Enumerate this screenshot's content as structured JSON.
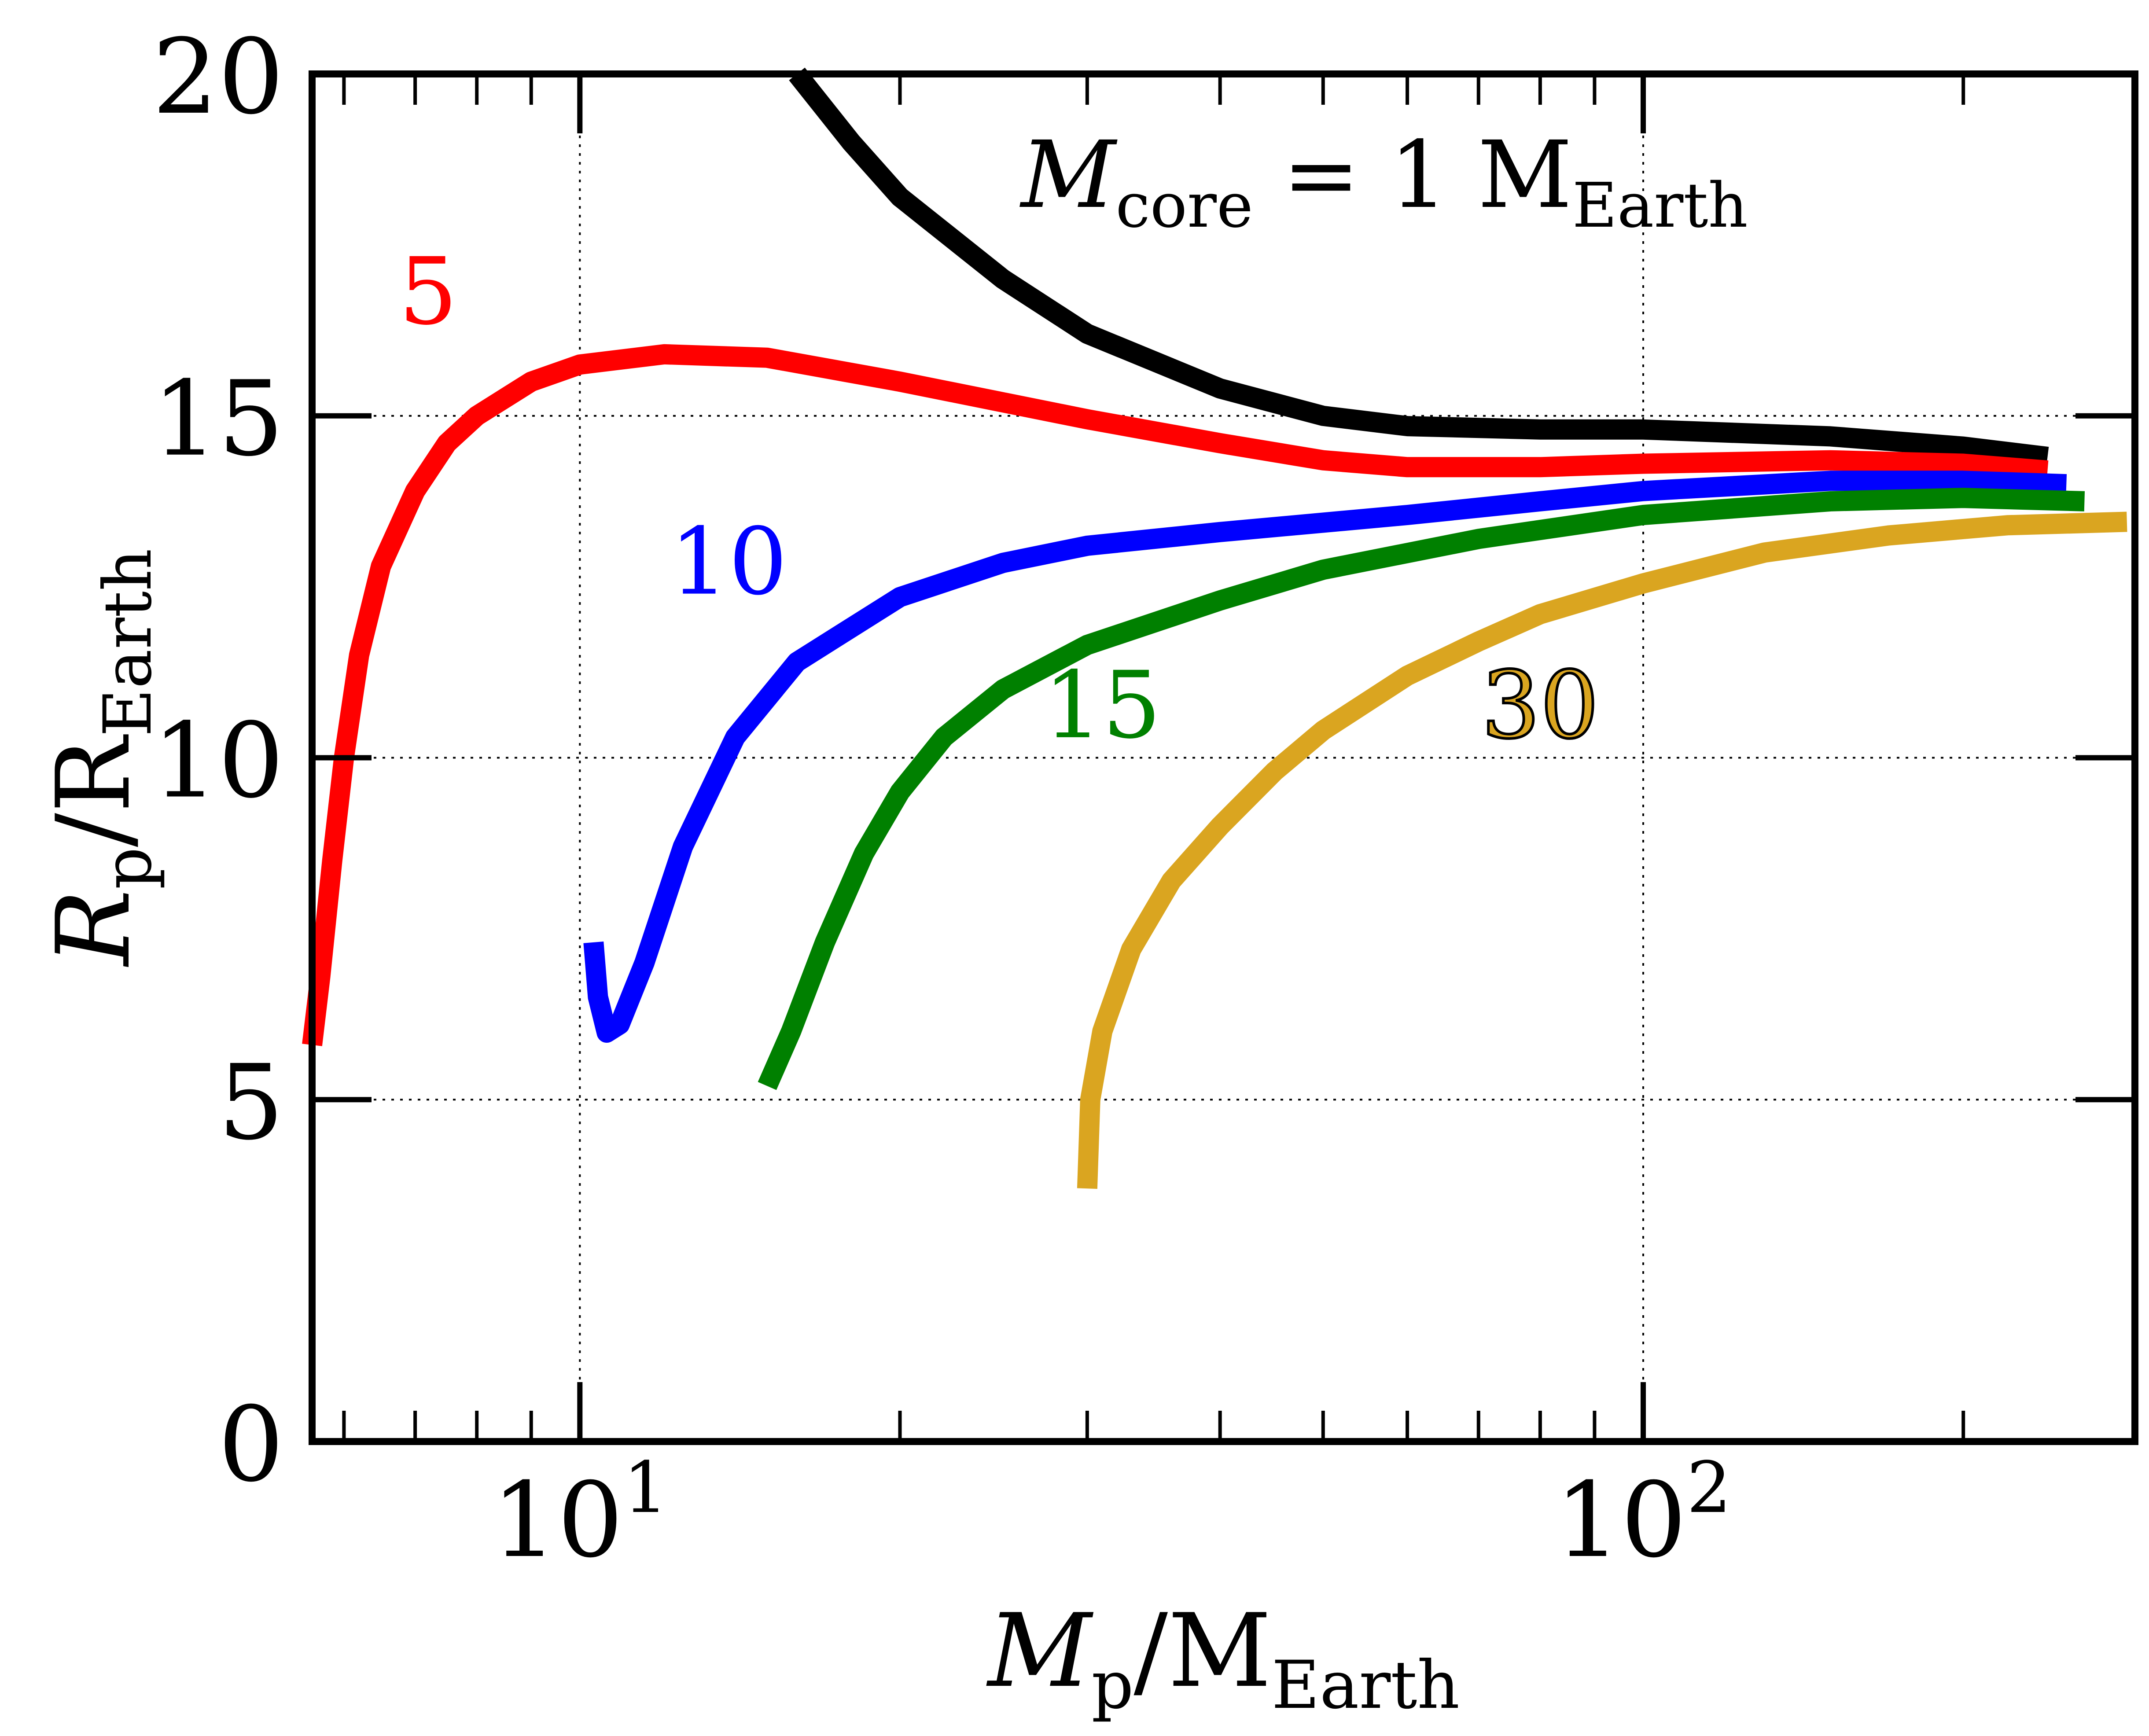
{
  "chart_data": {
    "type": "line",
    "xscale": "log",
    "xlim": [
      5.6,
      290
    ],
    "ylim": [
      0,
      20
    ],
    "grid": true,
    "xlabel": {
      "main": "M",
      "sub": "p",
      "sep": "/M",
      "unit_sub": "Earth"
    },
    "ylabel": {
      "main": "R",
      "sub": "p",
      "sep": "/R",
      "unit_sub": "Earth"
    },
    "annotation": {
      "prefix": "M",
      "sub": "core",
      "middle": " = 1 M",
      "unit_sub": "Earth"
    },
    "x_ticks": [
      {
        "value": 10,
        "base": "10",
        "exp": "1"
      },
      {
        "value": 100,
        "base": "10",
        "exp": "2"
      }
    ],
    "y_ticks": [
      {
        "value": 0,
        "label": "0"
      },
      {
        "value": 5,
        "label": "5"
      },
      {
        "value": 10,
        "label": "10"
      },
      {
        "value": 15,
        "label": "15"
      },
      {
        "value": 20,
        "label": "20"
      }
    ],
    "series": [
      {
        "label": "",
        "color": "#000000",
        "points": [
          [
            16.0,
            20.0
          ],
          [
            18.0,
            19.0
          ],
          [
            20.0,
            18.2
          ],
          [
            25.0,
            17.0
          ],
          [
            30.0,
            16.2
          ],
          [
            40.0,
            15.4
          ],
          [
            50.0,
            15.0
          ],
          [
            60.0,
            14.85
          ],
          [
            80.0,
            14.8
          ],
          [
            100.0,
            14.8
          ],
          [
            150.0,
            14.7
          ],
          [
            200.0,
            14.55
          ],
          [
            240.0,
            14.4
          ]
        ],
        "label_at": null
      },
      {
        "label": "5",
        "color": "#ff0000",
        "points": [
          [
            5.6,
            5.8
          ],
          [
            5.7,
            6.8
          ],
          [
            5.85,
            8.5
          ],
          [
            6.0,
            10.0
          ],
          [
            6.2,
            11.5
          ],
          [
            6.5,
            12.8
          ],
          [
            7.0,
            13.9
          ],
          [
            7.5,
            14.6
          ],
          [
            8.0,
            15.0
          ],
          [
            9.0,
            15.5
          ],
          [
            10.0,
            15.75
          ],
          [
            12.0,
            15.9
          ],
          [
            15.0,
            15.85
          ],
          [
            20.0,
            15.5
          ],
          [
            30.0,
            14.95
          ],
          [
            40.0,
            14.6
          ],
          [
            50.0,
            14.35
          ],
          [
            60.0,
            14.25
          ],
          [
            80.0,
            14.25
          ],
          [
            100.0,
            14.3
          ],
          [
            150.0,
            14.35
          ],
          [
            200.0,
            14.3
          ],
          [
            240.0,
            14.2
          ]
        ],
        "label_at": [
          7.2,
          16.35
        ]
      },
      {
        "label": "10",
        "color": "#0000ff",
        "points": [
          [
            10.3,
            7.3
          ],
          [
            10.4,
            6.5
          ],
          [
            10.6,
            5.98
          ],
          [
            10.9,
            6.1
          ],
          [
            11.5,
            7.0
          ],
          [
            12.5,
            8.7
          ],
          [
            14.0,
            10.3
          ],
          [
            16.0,
            11.4
          ],
          [
            20.0,
            12.35
          ],
          [
            25.0,
            12.85
          ],
          [
            30.0,
            13.1
          ],
          [
            40.0,
            13.3
          ],
          [
            60.0,
            13.55
          ],
          [
            80.0,
            13.75
          ],
          [
            100.0,
            13.9
          ],
          [
            150.0,
            14.05
          ],
          [
            200.0,
            14.05
          ],
          [
            250.0,
            14.0
          ]
        ],
        "label_at": [
          13.8,
          12.4
        ]
      },
      {
        "label": "15",
        "color": "#008000",
        "points": [
          [
            15.0,
            5.2
          ],
          [
            15.8,
            6.0
          ],
          [
            17.0,
            7.3
          ],
          [
            18.5,
            8.6
          ],
          [
            20.0,
            9.5
          ],
          [
            22.0,
            10.3
          ],
          [
            25.0,
            11.0
          ],
          [
            30.0,
            11.65
          ],
          [
            40.0,
            12.3
          ],
          [
            50.0,
            12.75
          ],
          [
            70.0,
            13.2
          ],
          [
            100.0,
            13.55
          ],
          [
            150.0,
            13.75
          ],
          [
            200.0,
            13.8
          ],
          [
            260.0,
            13.75
          ]
        ],
        "label_at": [
          31.0,
          10.3
        ]
      },
      {
        "label": "30",
        "color": "#daa520",
        "points": [
          [
            30.0,
            3.7
          ],
          [
            30.2,
            5.0
          ],
          [
            31.0,
            6.0
          ],
          [
            33.0,
            7.2
          ],
          [
            36.0,
            8.2
          ],
          [
            40.0,
            9.0
          ],
          [
            45.0,
            9.8
          ],
          [
            50.0,
            10.4
          ],
          [
            60.0,
            11.2
          ],
          [
            70.0,
            11.7
          ],
          [
            80.0,
            12.1
          ],
          [
            100.0,
            12.55
          ],
          [
            130.0,
            13.0
          ],
          [
            170.0,
            13.25
          ],
          [
            220.0,
            13.4
          ],
          [
            285.0,
            13.45
          ]
        ],
        "label_at": [
          80.0,
          10.3
        ]
      }
    ]
  }
}
